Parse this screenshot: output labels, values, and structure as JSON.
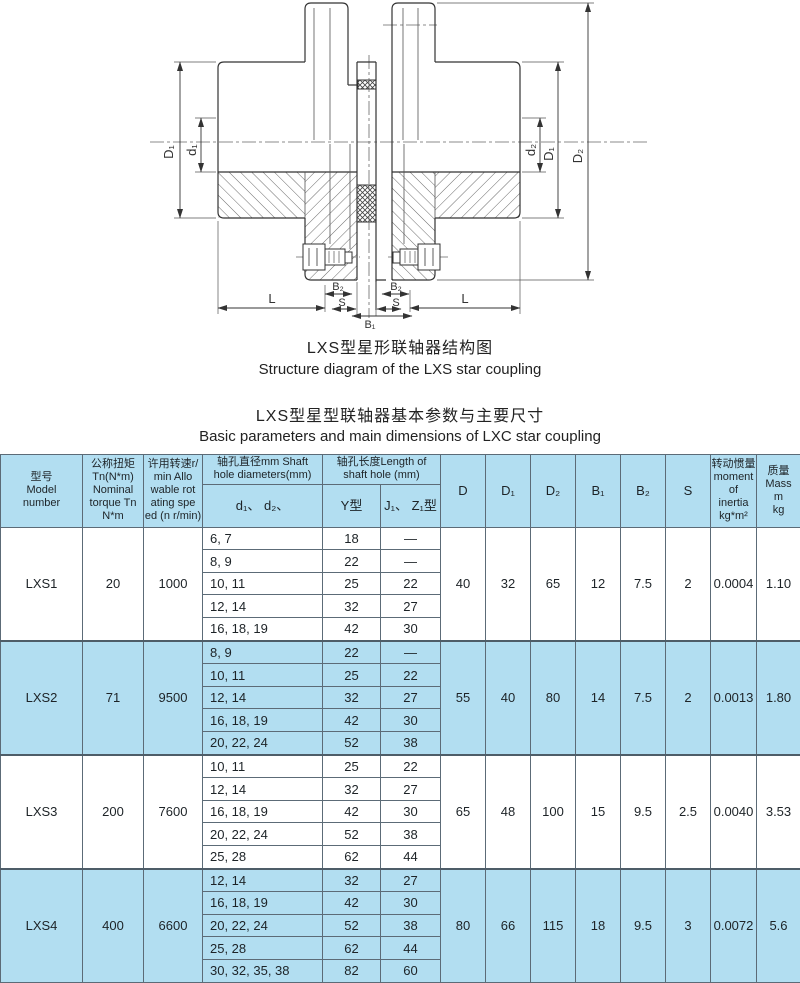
{
  "page": {
    "captions": {
      "structure_zh": "LXS型星形联轴器结构图",
      "structure_en": "Structure diagram of the LXS star coupling",
      "table_zh": "LXS型星型联轴器基本参数与主要尺寸",
      "table_en": "Basic parameters and main dimensions of LXC star coupling"
    },
    "colors": {
      "highlight": "#b2def1",
      "grid": "#5c6b77",
      "line": "#3a3a3a"
    }
  },
  "diagram": {
    "labels": {
      "dim_D1_left": "D₁",
      "dim_d1": "d₁",
      "dim_d2": "d₂",
      "dim_D1_right": "D₁",
      "dim_D2": "D₂",
      "dim_L_left": "L",
      "dim_L_right": "L",
      "dim_B2_left": "B₂",
      "dim_B2_right": "B₂",
      "dim_S_left": "S",
      "dim_S_right": "S",
      "dim_B1": "B₁"
    }
  },
  "table": {
    "header": {
      "model": "型号\nModel\nnumber",
      "torque": "公称扭矩\nTn(N*m)\nNominal\ntorque Tn\nN*m",
      "speed": "许用转速r/\nmin  Allo\nwable  rot\nating  spe\ned (n r/min)",
      "shaft_dia": "轴孔直径mm Shaft\nhole diameters(mm)",
      "shaft_len": "轴孔长度Length of\nshaft hole (mm)",
      "d1d2": "d₁、 d₂、",
      "y_type": "Y型",
      "jz_type": "J₁、 Z₁型",
      "D": "D",
      "D1": "D₁",
      "D2": "D₂",
      "B1": "B₁",
      "B2": "B₂",
      "S": "S",
      "inertia": "转动惯量\nmoment\nof\ninertia\nkg*m²",
      "mass": "质量\nMass\nm\nkg"
    },
    "groups": [
      {
        "model": "LXS1",
        "torque": "20",
        "speed": "1000",
        "highlight": false,
        "rows": [
          {
            "d": "6, 7",
            "y": "18",
            "jz": "—"
          },
          {
            "d": "8, 9",
            "y": "22",
            "jz": "—"
          },
          {
            "d": "10, 11",
            "y": "25",
            "jz": "22"
          },
          {
            "d": "12, 14",
            "y": "32",
            "jz": "27"
          },
          {
            "d": "16, 18, 19",
            "y": "42",
            "jz": "30"
          }
        ],
        "D": "40",
        "D1": "32",
        "D2": "65",
        "B1": "12",
        "B2": "7.5",
        "S": "2",
        "inertia": "0.0004",
        "mass": "1.10"
      },
      {
        "model": "LXS2",
        "torque": "71",
        "speed": "9500",
        "highlight": true,
        "rows": [
          {
            "d": "8, 9",
            "y": "22",
            "jz": "—"
          },
          {
            "d": "10, 11",
            "y": "25",
            "jz": "22"
          },
          {
            "d": "12, 14",
            "y": "32",
            "jz": "27"
          },
          {
            "d": "16, 18, 19",
            "y": "42",
            "jz": "30"
          },
          {
            "d": "20, 22, 24",
            "y": "52",
            "jz": "38"
          }
        ],
        "D": "55",
        "D1": "40",
        "D2": "80",
        "B1": "14",
        "B2": "7.5",
        "S": "2",
        "inertia": "0.0013",
        "mass": "1.80"
      },
      {
        "model": "LXS3",
        "torque": "200",
        "speed": "7600",
        "highlight": false,
        "rows": [
          {
            "d": "10, 11",
            "y": "25",
            "jz": "22"
          },
          {
            "d": "12, 14",
            "y": "32",
            "jz": "27"
          },
          {
            "d": "16, 18, 19",
            "y": "42",
            "jz": "30"
          },
          {
            "d": "20, 22, 24",
            "y": "52",
            "jz": "38"
          },
          {
            "d": "25, 28",
            "y": "62",
            "jz": "44"
          }
        ],
        "D": "65",
        "D1": "48",
        "D2": "100",
        "B1": "15",
        "B2": "9.5",
        "S": "2.5",
        "inertia": "0.0040",
        "mass": "3.53"
      },
      {
        "model": "LXS4",
        "torque": "400",
        "speed": "6600",
        "highlight": true,
        "rows": [
          {
            "d": "12, 14",
            "y": "32",
            "jz": "27"
          },
          {
            "d": "16, 18, 19",
            "y": "42",
            "jz": "30"
          },
          {
            "d": "20, 22, 24",
            "y": "52",
            "jz": "38"
          },
          {
            "d": "25, 28",
            "y": "62",
            "jz": "44"
          },
          {
            "d": "30, 32, 35, 38",
            "y": "82",
            "jz": "60"
          }
        ],
        "D": "80",
        "D1": "66",
        "D2": "115",
        "B1": "18",
        "B2": "9.5",
        "S": "3",
        "inertia": "0.0072",
        "mass": "5.6"
      }
    ]
  }
}
